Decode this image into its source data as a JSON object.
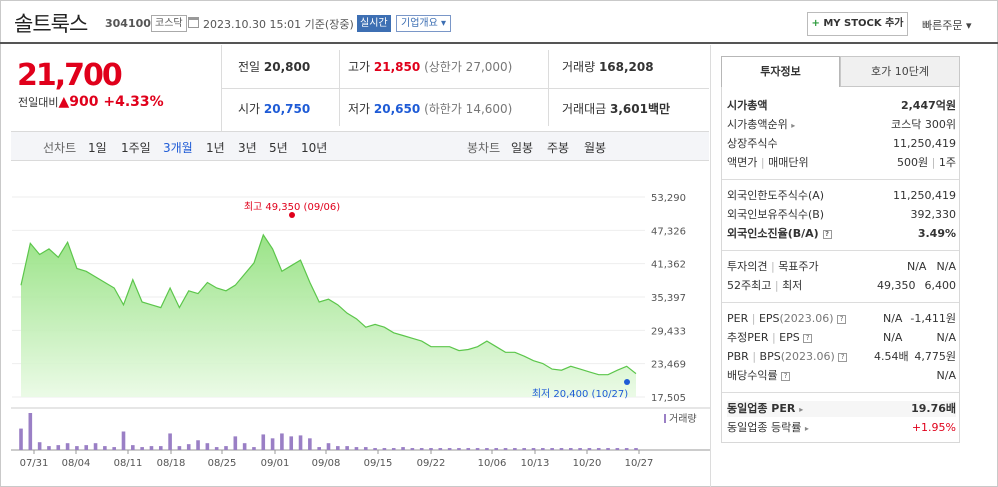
{
  "header": {
    "name": "솔트룩스",
    "code": "304100",
    "market": "코스닥",
    "datetime": "2023.10.30 15:01 기준(장중)",
    "realtime": "실시간",
    "overview": "기업개요",
    "mystock": "MY STOCK 추가",
    "quick_order": "빠른주문"
  },
  "price": {
    "current": "21,700",
    "change_label": "전일대비",
    "change": "900",
    "change_pct": "+4.33%"
  },
  "summary": {
    "prev_label": "전일",
    "prev": "20,800",
    "high_label": "고가",
    "high": "21,850",
    "upper": "(상한가 27,000)",
    "volume_label": "거래량",
    "volume": "168,208",
    "open_label": "시가",
    "open": "20,750",
    "low_label": "저가",
    "low": "20,650",
    "lower": "(하한가 14,600)",
    "amount_label": "거래대금",
    "amount": "3,601",
    "amount_unit": "백만"
  },
  "period_bar": {
    "line_label": "선차트",
    "periods": [
      "1일",
      "1주일",
      "3개월",
      "1년",
      "3년",
      "5년",
      "10년"
    ],
    "selected": "3개월",
    "candle_label": "봉차트",
    "candles": [
      "일봉",
      "주봉",
      "월봉"
    ]
  },
  "chart_data": {
    "type": "line",
    "y_ticks": [
      "53,290",
      "47,326",
      "41,362",
      "35,397",
      "29,433",
      "23,469",
      "17,505"
    ],
    "ylim": [
      17505,
      53290
    ],
    "x_ticks": [
      "07/31",
      "08/04",
      "08/11",
      "08/18",
      "08/25",
      "09/01",
      "09/08",
      "09/15",
      "09/22",
      "10/06",
      "10/13",
      "10/20",
      "10/27"
    ],
    "high_label": "최고 49,350 (09/06)",
    "low_label": "최저 20,400 (10/27)",
    "volume_label": "거래량",
    "values": [
      37500,
      45000,
      43000,
      44000,
      42500,
      45200,
      40500,
      40000,
      39000,
      38000,
      37000,
      34000,
      38500,
      34500,
      34000,
      33500,
      37000,
      33500,
      36500,
      36000,
      38000,
      37000,
      36500,
      37500,
      39500,
      41500,
      46500,
      44000,
      40000,
      41000,
      42000,
      38000,
      34500,
      35000,
      34000,
      32500,
      31500,
      30000,
      30500,
      30000,
      29000,
      28500,
      28000,
      27500,
      26500,
      26500,
      26500,
      25800,
      26000,
      26500,
      27500,
      26500,
      25500,
      25500,
      24800,
      24000,
      23500,
      22500,
      22300,
      23000,
      22500,
      22000,
      21500,
      21500,
      22300,
      23000,
      21700
    ],
    "volumes": [
      22,
      38,
      8,
      4,
      5,
      7,
      4,
      5,
      7,
      4,
      3,
      19,
      5,
      3,
      4,
      4,
      17,
      4,
      6,
      10,
      7,
      3,
      4,
      14,
      7,
      3,
      16,
      12,
      17,
      14,
      15,
      12,
      3,
      7,
      4,
      4,
      3,
      3,
      2,
      2,
      2,
      3,
      2,
      2,
      2,
      2,
      2,
      2,
      2,
      2,
      2,
      2,
      2,
      2,
      2,
      2,
      2,
      2,
      2,
      2,
      2,
      2,
      2,
      2,
      2,
      2,
      2
    ]
  },
  "right_panel": {
    "tab_active": "투자정보",
    "tab_other": "호가 10단계",
    "market_cap_label": "시가총액",
    "market_cap": "2,447억원",
    "rank_label": "시가총액순위",
    "rank": "코스닥 300위",
    "shares_label": "상장주식수",
    "shares": "11,250,419",
    "par_label": "액면가",
    "unit_label": "매매단위",
    "par": "500원",
    "unit": "1주",
    "foreign_limit_label": "외국인한도주식수(A)",
    "foreign_limit": "11,250,419",
    "foreign_hold_label": "외국인보유주식수(B)",
    "foreign_hold": "392,330",
    "foreign_rate_label": "외국인소진율(B/A)",
    "foreign_rate": "3.49%",
    "opinion_label": "투자의견",
    "target_label": "목표주가",
    "opinion": "N/A",
    "target": "N/A",
    "w52_high_label": "52주최고",
    "w52_low_label": "최저",
    "w52_high": "49,350",
    "w52_low": "6,400",
    "per_label": "PER",
    "eps_label": "EPS",
    "eps_year": "(2023.06)",
    "per": "N/A",
    "eps": "-1,411원",
    "est_per_label": "추정PER",
    "est_eps_label": "EPS",
    "est_per": "N/A",
    "est_eps": "N/A",
    "pbr_label": "PBR",
    "bps_label": "BPS",
    "bps_year": "(2023.06)",
    "pbr": "4.54배",
    "bps": "4,775원",
    "div_label": "배당수익률",
    "div": "N/A",
    "ind_per_label": "동일업종 PER",
    "ind_per": "19.76배",
    "ind_rate_label": "동일업종 등락률",
    "ind_rate": "+1.95%"
  }
}
